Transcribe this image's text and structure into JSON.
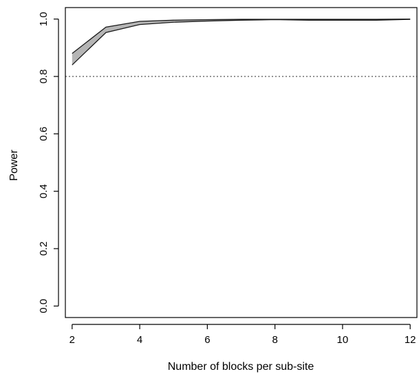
{
  "chart_data": {
    "type": "area",
    "title": "",
    "xlabel": "Number of blocks per sub-site",
    "ylabel": "Power",
    "xlim": [
      1.8,
      12.2
    ],
    "ylim": [
      -0.04,
      1.04
    ],
    "xticks": [
      2,
      4,
      6,
      8,
      10,
      12
    ],
    "xtick_labels": [
      "2",
      "4",
      "6",
      "8",
      "10",
      "12"
    ],
    "yticks": [
      0.0,
      0.2,
      0.4,
      0.6,
      0.8,
      1.0
    ],
    "ytick_labels": [
      "0.0",
      "0.2",
      "0.4",
      "0.6",
      "0.8",
      "1.0"
    ],
    "grid": false,
    "band": {
      "x": [
        2,
        3,
        4,
        5,
        6,
        7,
        8,
        9,
        10,
        11,
        12
      ],
      "upper": [
        0.88,
        0.972,
        0.992,
        0.996,
        0.998,
        0.999,
        0.999,
        0.999,
        0.999,
        0.999,
        1.0
      ],
      "lower": [
        0.84,
        0.953,
        0.981,
        0.989,
        0.993,
        0.996,
        0.998,
        0.996,
        0.996,
        0.996,
        0.999
      ],
      "fill_color": "#b5b5b5",
      "line_color": "#1a1a1a"
    },
    "reference_line": {
      "y": 0.8,
      "style": "dotted",
      "color": "#555555"
    }
  }
}
